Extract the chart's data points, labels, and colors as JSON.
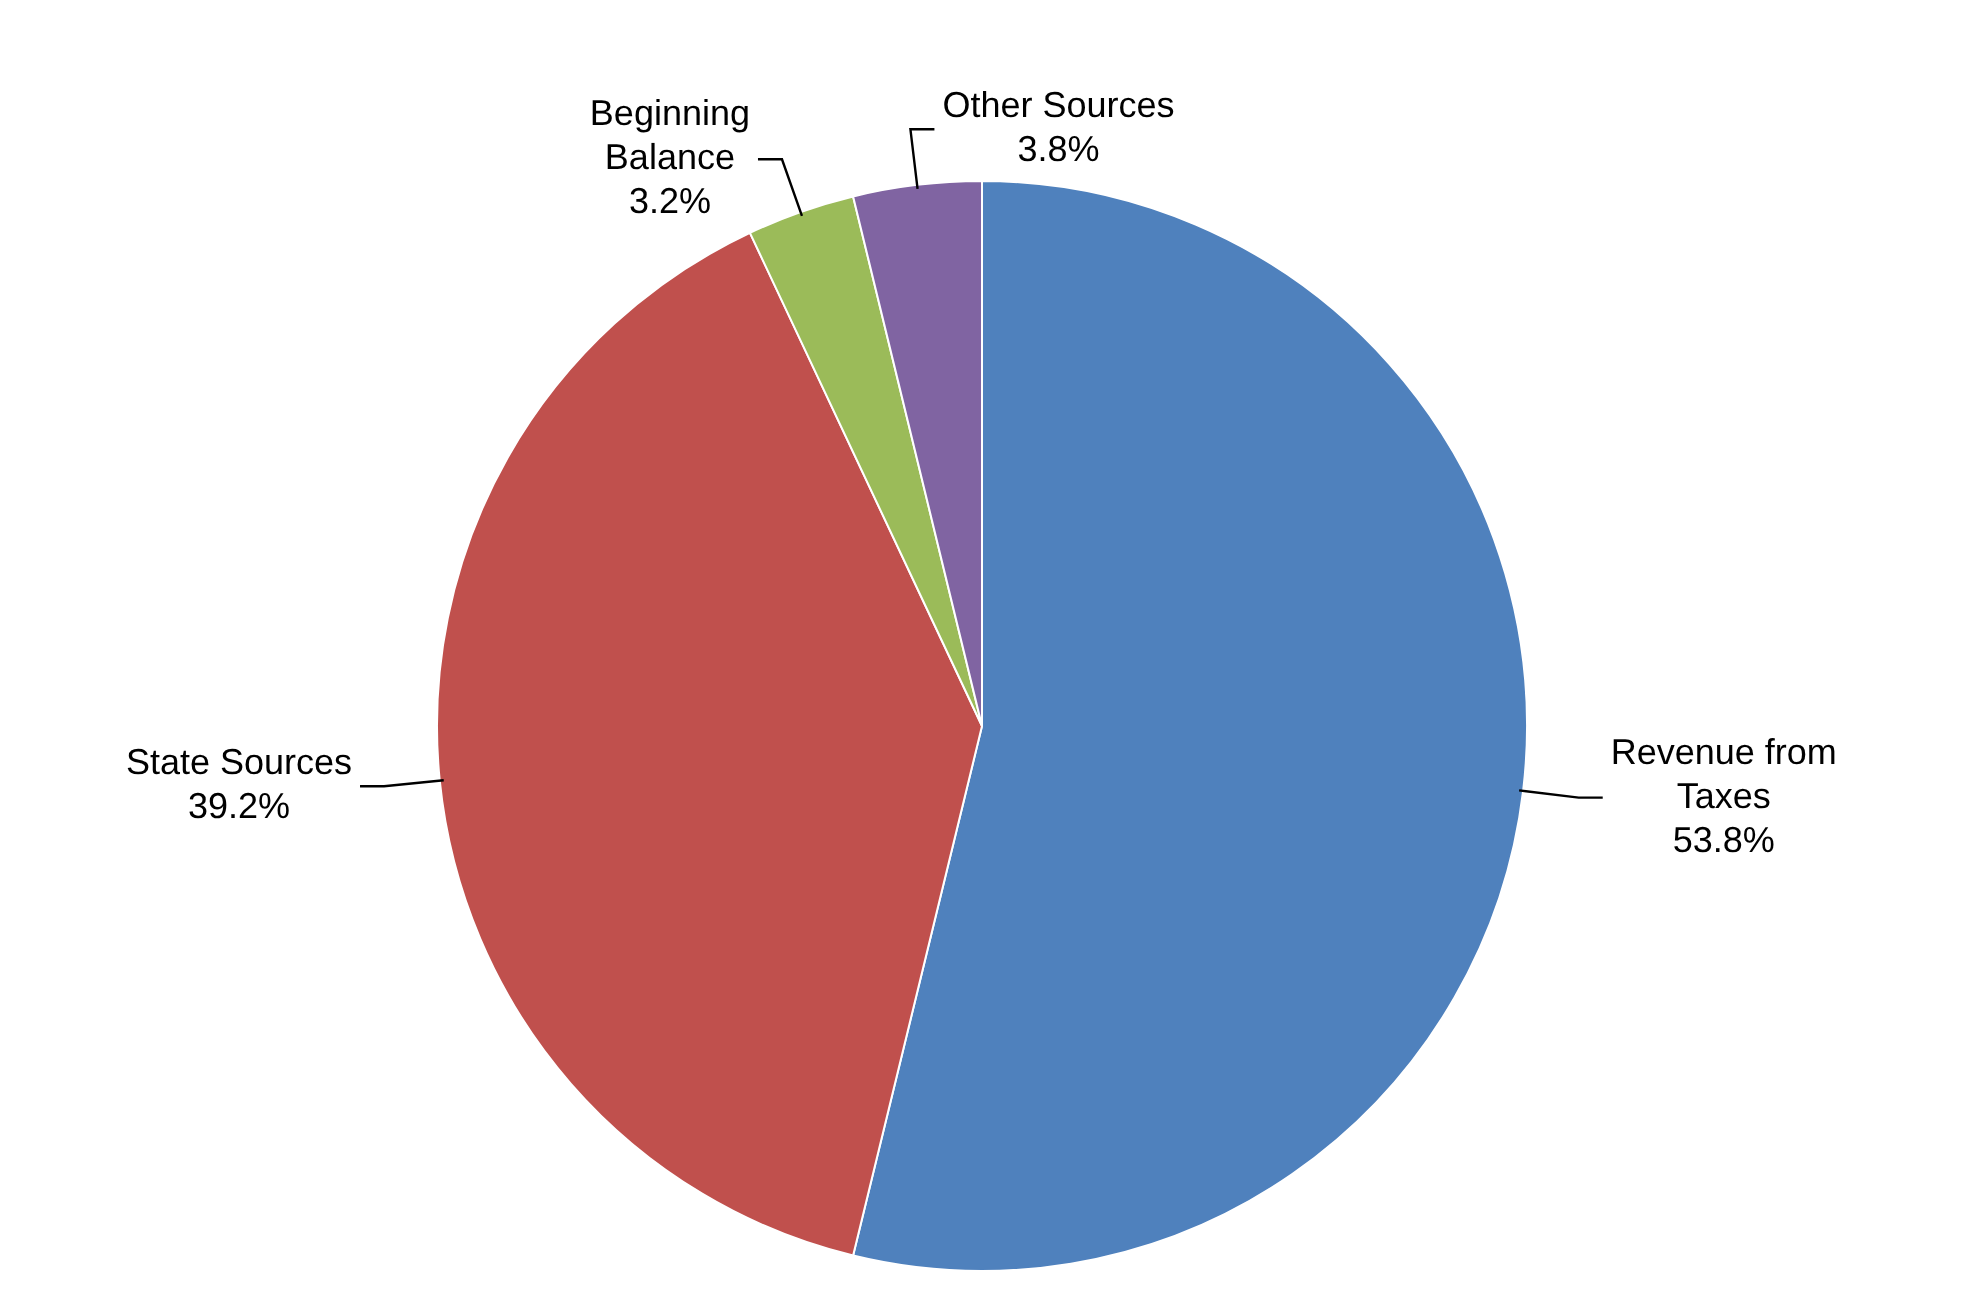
{
  "chart_data": {
    "type": "pie",
    "categories": [
      "Revenue from Taxes",
      "State Sources",
      "Beginning Balance",
      "Other Sources"
    ],
    "values": [
      53.8,
      39.2,
      3.2,
      3.8
    ],
    "colors": [
      "#4f81bd",
      "#c0504d",
      "#9bbb59",
      "#8064a2"
    ],
    "value_labels": [
      "53.8%",
      "39.2%",
      "3.2%",
      "3.8%"
    ],
    "legend": false
  }
}
